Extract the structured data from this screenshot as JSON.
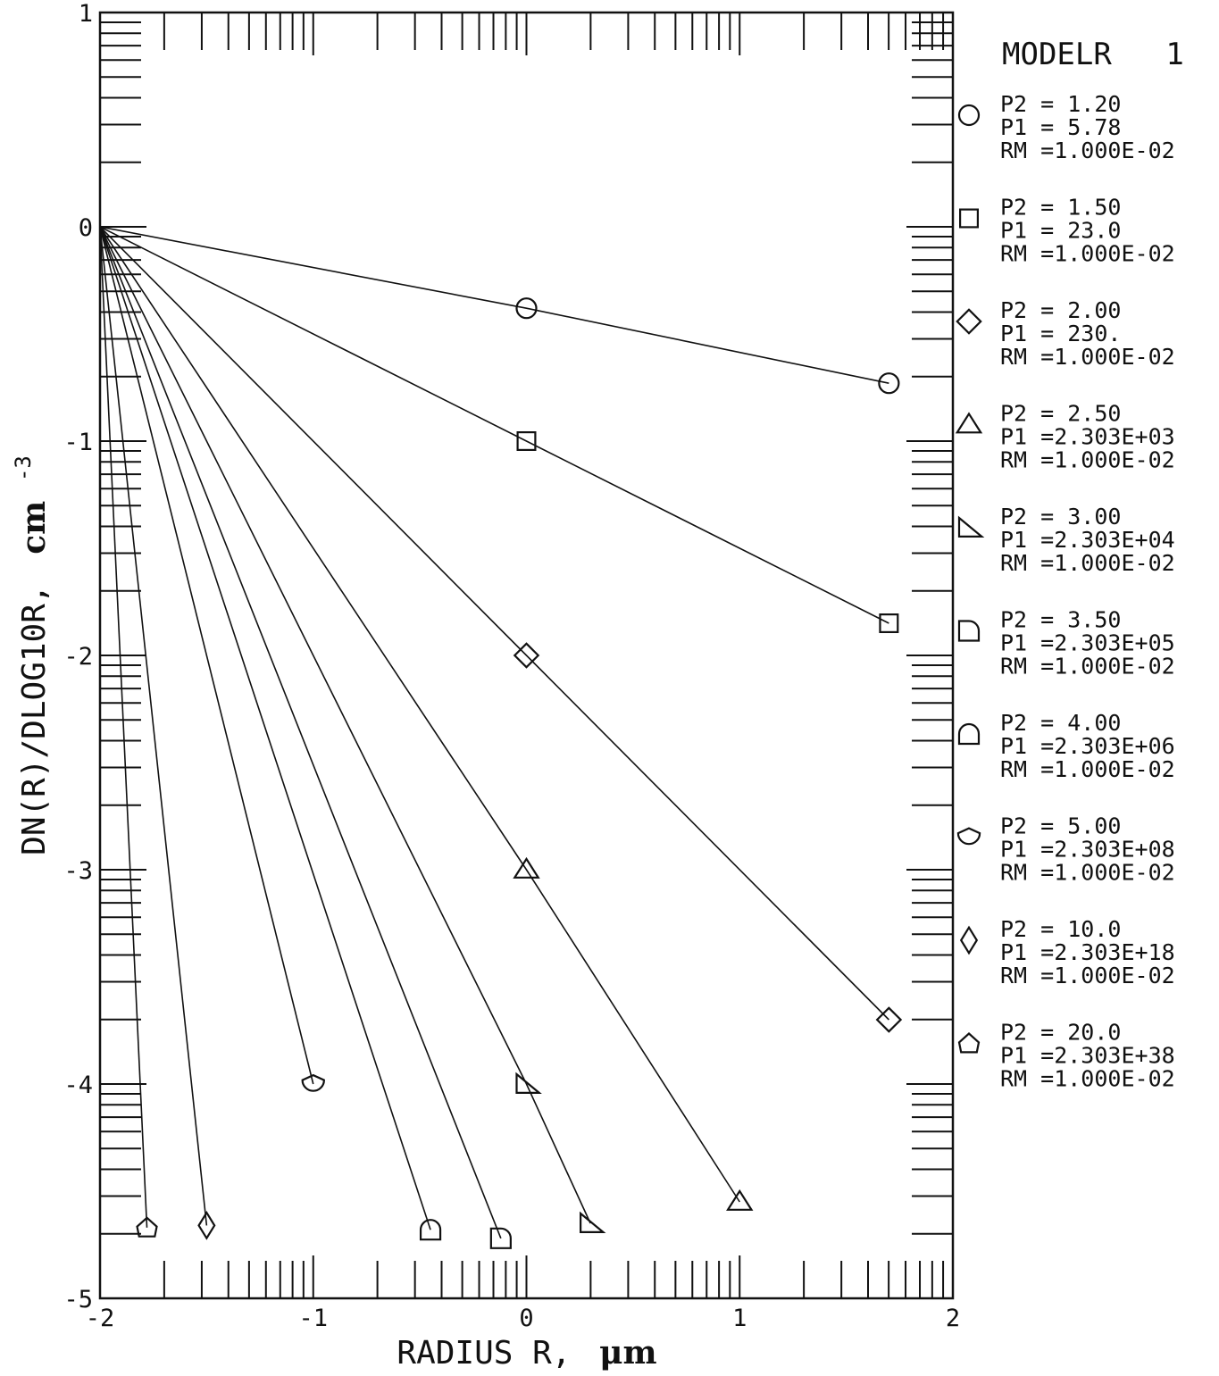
{
  "chart_data": {
    "type": "line",
    "title": "MODELR",
    "title_number": "1",
    "xlabel_text": "RADIUS R,",
    "xlabel_unit": "μm",
    "ylabel_text": "DN(R)/DLOG10R,",
    "ylabel_unit": "cm",
    "ylabel_exponent": "-3",
    "xlim": [
      -2,
      2
    ],
    "ylim": [
      -5,
      1
    ],
    "x_ticks": [
      -2,
      -1,
      0,
      1,
      2
    ],
    "x_tick_labels": [
      "-2",
      "-1",
      "0",
      "1",
      "2"
    ],
    "y_ticks": [
      -5,
      -4,
      -3,
      -2,
      -1,
      0,
      1
    ],
    "y_tick_labels": [
      "-5",
      "-4",
      "-3",
      "-2",
      "-1",
      "0",
      "1"
    ],
    "grid": false,
    "legend_position": "right",
    "series": [
      {
        "marker": "circle",
        "legend": [
          "P2 = 1.20",
          "P1 = 5.78",
          "RM =1.000E-02"
        ],
        "x": [
          -2,
          0,
          1.7
        ],
        "y": [
          0,
          -0.38,
          -0.73
        ]
      },
      {
        "marker": "square",
        "legend": [
          "P2 = 1.50",
          "P1 = 23.0",
          "RM =1.000E-02"
        ],
        "x": [
          -2,
          0,
          1.7
        ],
        "y": [
          0,
          -1.0,
          -1.85
        ]
      },
      {
        "marker": "diamond",
        "legend": [
          "P2 = 2.00",
          "P1 = 230.",
          "RM =1.000E-02"
        ],
        "x": [
          -2,
          0,
          1.7
        ],
        "y": [
          0,
          -2.0,
          -3.7
        ]
      },
      {
        "marker": "triangle",
        "legend": [
          "P2 = 2.50",
          "P1 =2.303E+03",
          "RM =1.000E-02"
        ],
        "x": [
          -2,
          0,
          1.0
        ],
        "y": [
          0,
          -3.0,
          -4.55
        ]
      },
      {
        "marker": "right-triangle",
        "legend": [
          "P2 = 3.00",
          "P1 =2.303E+04",
          "RM =1.000E-02"
        ],
        "x": [
          -2,
          0,
          0.3
        ],
        "y": [
          0,
          -4.0,
          -4.65
        ]
      },
      {
        "marker": "d-shape",
        "legend": [
          "P2 = 3.50",
          "P1 =2.303E+05",
          "RM =1.000E-02"
        ],
        "x": [
          -2,
          -0.12
        ],
        "y": [
          0,
          -4.72
        ]
      },
      {
        "marker": "arch",
        "legend": [
          "P2 = 4.00",
          "P1 =2.303E+06",
          "RM =1.000E-02"
        ],
        "x": [
          -2,
          -0.45
        ],
        "y": [
          0,
          -4.68
        ]
      },
      {
        "marker": "lens",
        "legend": [
          "P2 = 5.00",
          "P1 =2.303E+08",
          "RM =1.000E-02"
        ],
        "x": [
          -2,
          -1.0
        ],
        "y": [
          0,
          -4.0
        ]
      },
      {
        "marker": "narrow-diamond",
        "legend": [
          "P2 = 10.0",
          "P1 =2.303E+18",
          "RM =1.000E-02"
        ],
        "x": [
          -2,
          -1.5
        ],
        "y": [
          0,
          -4.66
        ]
      },
      {
        "marker": "pentagon",
        "legend": [
          "P2 = 20.0",
          "P1 =2.303E+38",
          "RM =1.000E-02"
        ],
        "x": [
          -2,
          -1.78
        ],
        "y": [
          0,
          -4.67
        ]
      }
    ]
  }
}
